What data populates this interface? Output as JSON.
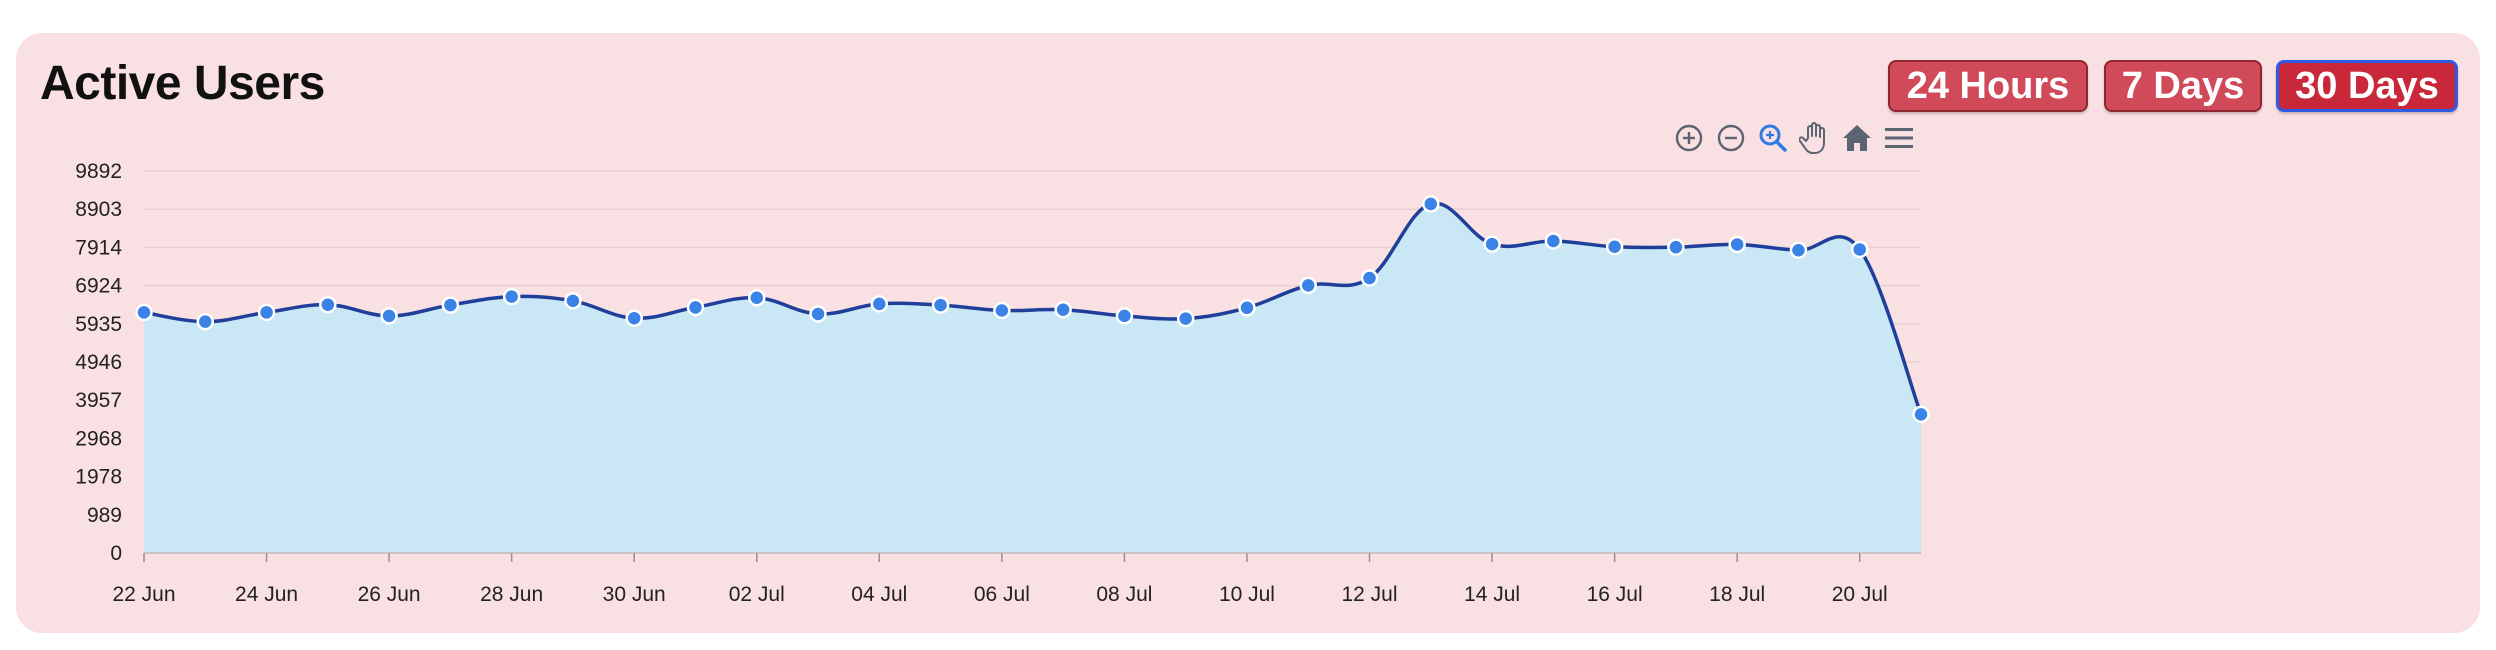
{
  "header": {
    "title": "Active Users",
    "ranges": [
      {
        "label": "24 Hours",
        "active": false
      },
      {
        "label": "7 Days",
        "active": false
      },
      {
        "label": "30 Days",
        "active": true
      }
    ]
  },
  "toolbar": [
    "zoom-in-icon",
    "zoom-out-icon",
    "zoom-select-icon",
    "pan-hand-icon",
    "home-reset-icon",
    "menu-icon"
  ],
  "chart_data": {
    "type": "area",
    "title": "Active Users",
    "x": [
      "22 Jun",
      "23 Jun",
      "24 Jun",
      "25 Jun",
      "26 Jun",
      "27 Jun",
      "28 Jun",
      "29 Jun",
      "30 Jun",
      "01 Jul",
      "02 Jul",
      "03 Jul",
      "04 Jul",
      "05 Jul",
      "06 Jul",
      "07 Jul",
      "08 Jul",
      "09 Jul",
      "10 Jul",
      "11 Jul",
      "12 Jul",
      "13 Jul",
      "14 Jul",
      "15 Jul",
      "16 Jul",
      "17 Jul",
      "18 Jul",
      "19 Jul",
      "20 Jul",
      "21 Jul"
    ],
    "x_tick_labels": [
      "22 Jun",
      "24 Jun",
      "26 Jun",
      "28 Jun",
      "30 Jun",
      "02 Jul",
      "04 Jul",
      "06 Jul",
      "08 Jul",
      "10 Jul",
      "12 Jul",
      "14 Jul",
      "16 Jul",
      "18 Jul",
      "20 Jul"
    ],
    "y_tick_labels": [
      "0",
      "989",
      "1978",
      "2968",
      "3957",
      "4946",
      "5935",
      "6924",
      "7914",
      "8903",
      "9892"
    ],
    "ylim": [
      0,
      9892
    ],
    "series": [
      {
        "values": [
          6230,
          5990,
          6230,
          6430,
          6140,
          6420,
          6640,
          6530,
          6080,
          6360,
          6610,
          6190,
          6450,
          6420,
          6280,
          6300,
          6140,
          6070,
          6350,
          6930,
          7120,
          9040,
          8000,
          8080,
          7930,
          7920,
          7990,
          7840,
          7860,
          3590
        ]
      }
    ],
    "colors": {
      "line": "#1f3f9a",
      "fill": "#c9e7f4",
      "marker": "#3b82e6",
      "marker_stroke": "#ffffff",
      "grid": "#e6cfd3"
    },
    "grid": true,
    "legend": false
  }
}
